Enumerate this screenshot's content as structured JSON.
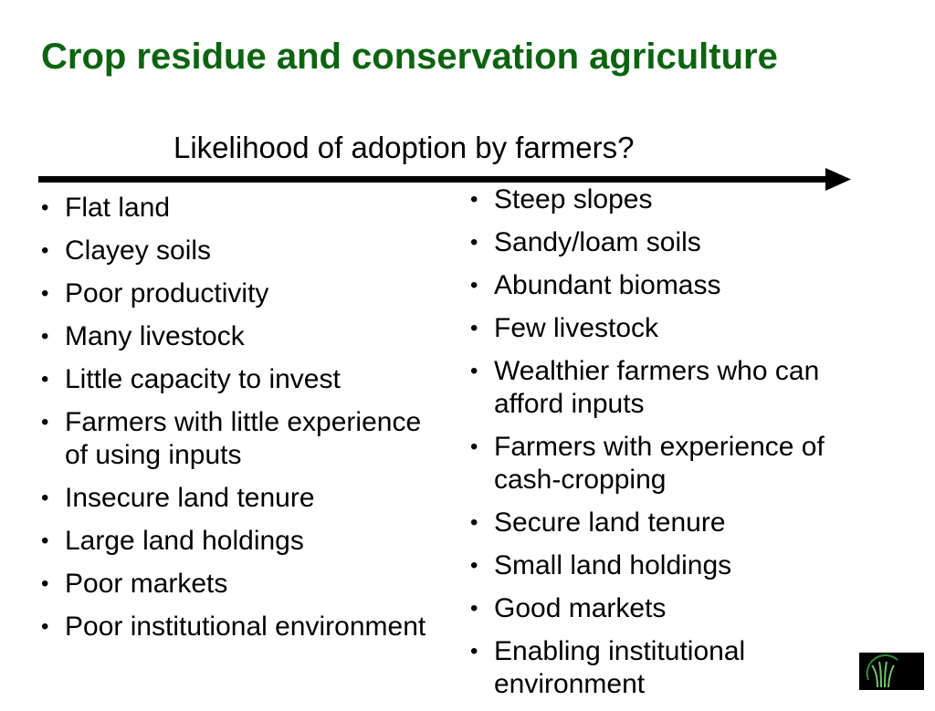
{
  "title": "Crop residue and conservation agriculture",
  "subtitle": "Likelihood of adoption by farmers?",
  "left_items": [
    "Flat land",
    "Clayey soils",
    "Poor productivity",
    "Many livestock",
    "Little capacity to invest",
    "Farmers with little experience of using inputs",
    "Insecure land tenure",
    "Large land holdings",
    "Poor markets",
    "Poor institutional environment"
  ],
  "right_items": [
    "Steep slopes",
    "Sandy/loam soils",
    "Abundant biomass",
    "Few livestock",
    "Wealthier farmers who can afford inputs",
    "Farmers with experience of cash-cropping",
    "Secure land tenure",
    "Small land holdings",
    "Good markets",
    "Enabling institutional environment"
  ],
  "colors": {
    "title": "#0d6410",
    "logo_bg": "#000000",
    "logo_green": "#2e8b3a"
  }
}
